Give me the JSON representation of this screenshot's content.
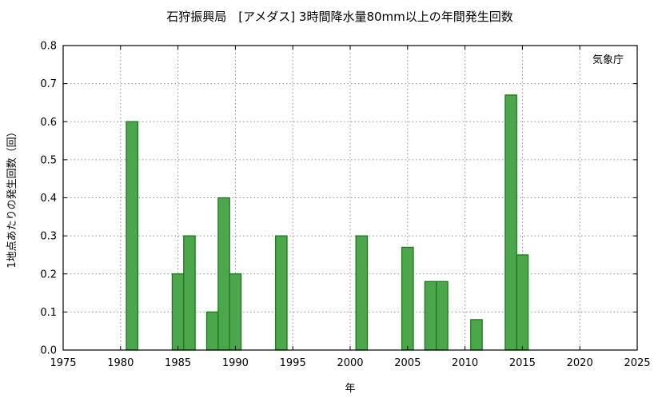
{
  "chart_data": {
    "type": "bar",
    "title": "石狩振興局　[アメダス] 3時間降水量80mm以上の年間発生回数",
    "xlabel": "年",
    "ylabel": "1地点あたりの発生回数（回）",
    "annotation": "気象庁",
    "xlim": [
      1975,
      2025
    ],
    "ylim": [
      0,
      0.8
    ],
    "x_ticks": [
      "1975",
      "1980",
      "1985",
      "1990",
      "1995",
      "2000",
      "2005",
      "2010",
      "2015",
      "2020",
      "2025"
    ],
    "y_ticks": [
      "0.0",
      "0.1",
      "0.2",
      "0.3",
      "0.4",
      "0.5",
      "0.6",
      "0.7",
      "0.8"
    ],
    "grid": true,
    "bar_color": "#4ca64c",
    "bar_edge_color": "#1a7a1a",
    "x": [
      1981,
      1985,
      1986,
      1988,
      1989,
      1990,
      1994,
      2001,
      2005,
      2007,
      2008,
      2011,
      2014,
      2015
    ],
    "values": [
      0.6,
      0.2,
      0.3,
      0.1,
      0.4,
      0.2,
      0.3,
      0.3,
      0.27,
      0.18,
      0.18,
      0.08,
      0.67,
      0.25
    ]
  }
}
